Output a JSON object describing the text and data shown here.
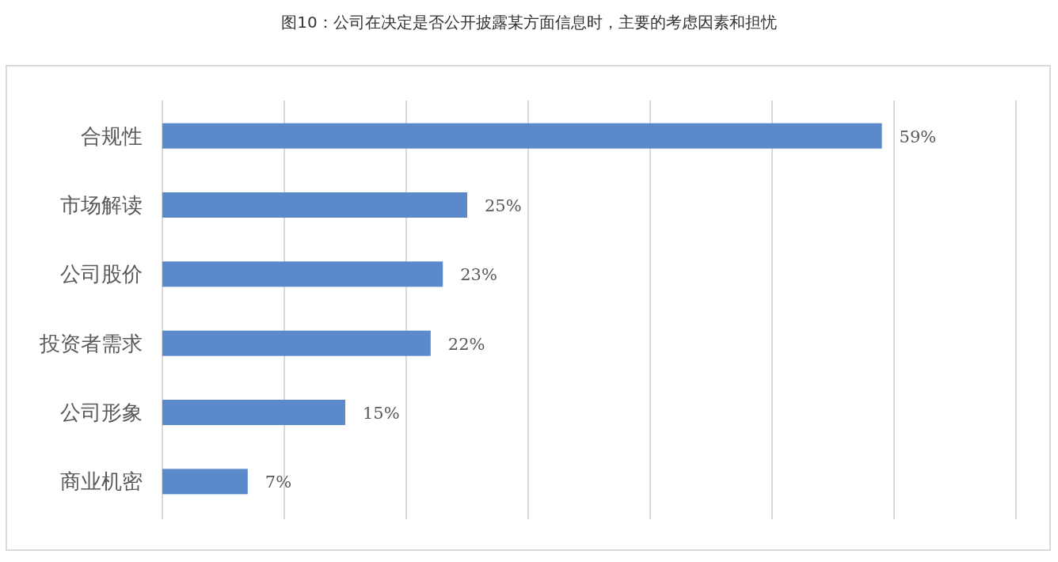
{
  "chart_data": {
    "type": "bar",
    "orientation": "horizontal",
    "title": "图10：公司在决定是否公开披露某方面信息时，主要的考虑因素和担忧",
    "categories": [
      "合规性",
      "市场解读",
      "公司股价",
      "投资者需求",
      "公司形象",
      "商业机密"
    ],
    "values": [
      59,
      25,
      23,
      22,
      15,
      7
    ],
    "value_labels": [
      "59%",
      "25%",
      "23%",
      "22%",
      "15%",
      "7%"
    ],
    "color": "#5a8ac9",
    "xlim": [
      0,
      70
    ],
    "xticks": [
      {
        "value": 0,
        "label": null
      },
      {
        "value": 10,
        "label": null
      },
      {
        "value": 20,
        "label": null
      },
      {
        "value": 30,
        "label": null
      },
      {
        "value": 40,
        "label": null
      },
      {
        "value": 50,
        "label": null
      },
      {
        "value": 60,
        "label": null
      },
      {
        "value": 70,
        "label": null
      }
    ],
    "grid": "x",
    "tick_labels": "y"
  }
}
